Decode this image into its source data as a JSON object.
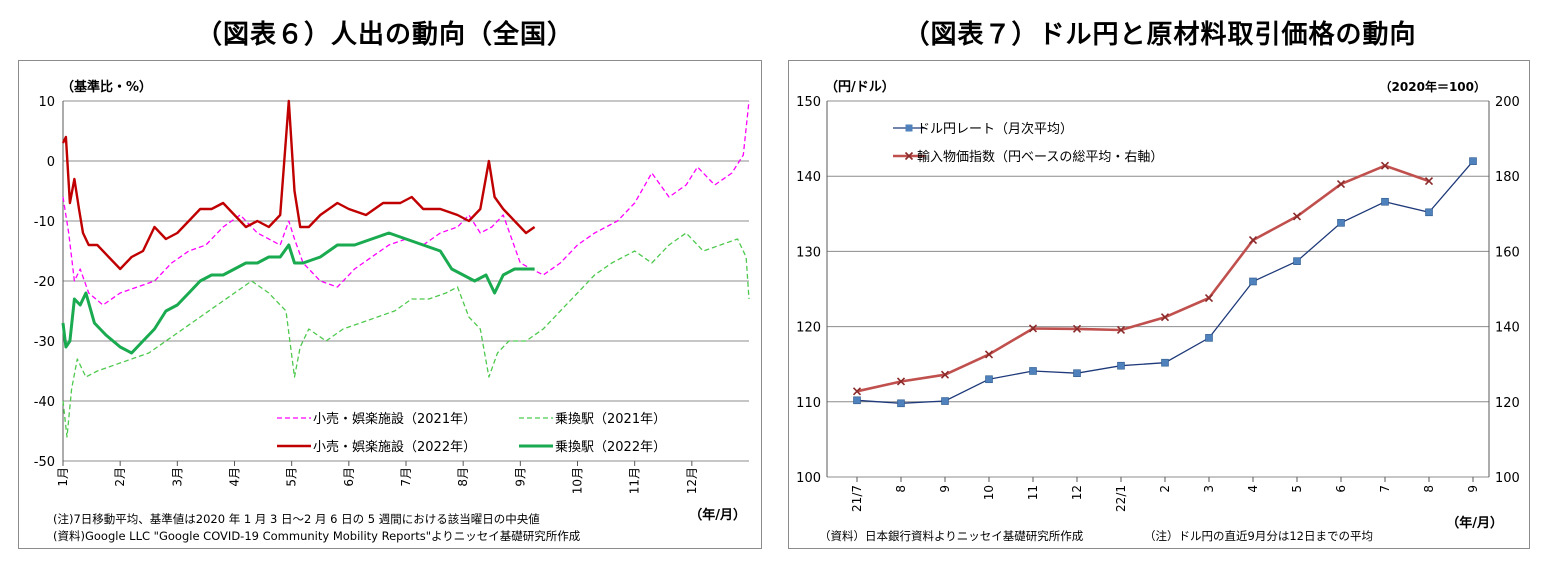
{
  "titles": {
    "left": "（図表６）人出の動向（全国）",
    "right": "（図表７）ドル円と原材料取引価格の動向"
  },
  "chart_data": [
    {
      "type": "line",
      "title": "（図表６）人出の動向（全国）",
      "ylabel": "（基準比・%）",
      "xlabel": "（年/月）",
      "ylim": [
        -50,
        10
      ],
      "yticks": [
        10,
        0,
        -10,
        -20,
        -30,
        -40,
        -50
      ],
      "x_months": [
        "1月",
        "2月",
        "3月",
        "4月",
        "5月",
        "6月",
        "7月",
        "8月",
        "9月",
        "10月",
        "11月",
        "12月"
      ],
      "grid": true,
      "legend_placement": "bottom-right",
      "series": [
        {
          "name": "小売・娯楽施設（2021年）",
          "color": "#ff00ff",
          "style": "dashed",
          "width": 1.3,
          "x": [
            1,
            1.1,
            1.2,
            1.3,
            1.45,
            1.7,
            2.0,
            2.3,
            2.6,
            2.9,
            3.2,
            3.5,
            3.8,
            4.1,
            4.4,
            4.8,
            4.95,
            5.05,
            5.2,
            5.5,
            5.8,
            6.1,
            6.4,
            6.7,
            7.0,
            7.3,
            7.6,
            7.9,
            8.1,
            8.3,
            8.5,
            8.7,
            9.0,
            9.4,
            9.7,
            10.0,
            10.3,
            10.7,
            11.0,
            11.3,
            11.6,
            11.9,
            12.1,
            12.4,
            12.7,
            12.9,
            13.0
          ],
          "y": [
            -6,
            -12,
            -20,
            -18,
            -22,
            -24,
            -22,
            -21,
            -20,
            -17,
            -15,
            -14,
            -11,
            -9,
            -12,
            -14,
            -10,
            -13,
            -17,
            -20,
            -21,
            -18,
            -16,
            -14,
            -13,
            -14,
            -12,
            -11,
            -9,
            -12,
            -11,
            -9,
            -17,
            -19,
            -17,
            -14,
            -12,
            -10,
            -7,
            -2,
            -6,
            -4,
            -1,
            -4,
            -2,
            1,
            10
          ]
        },
        {
          "name": "乗換駅（2021年）",
          "color": "#4ec94e",
          "style": "dashed",
          "width": 1.3,
          "x": [
            1,
            1.07,
            1.15,
            1.25,
            1.4,
            1.6,
            1.9,
            2.2,
            2.5,
            2.8,
            3.1,
            3.4,
            3.7,
            4.0,
            4.3,
            4.6,
            4.9,
            5.05,
            5.15,
            5.3,
            5.6,
            5.9,
            6.2,
            6.5,
            6.8,
            7.1,
            7.4,
            7.7,
            7.9,
            8.1,
            8.3,
            8.45,
            8.6,
            8.8,
            9.1,
            9.4,
            9.7,
            10.0,
            10.3,
            10.6,
            11.0,
            11.3,
            11.6,
            11.9,
            12.2,
            12.5,
            12.8,
            12.95,
            13.0
          ],
          "y": [
            -40,
            -46,
            -38,
            -33,
            -36,
            -35,
            -34,
            -33,
            -32,
            -30,
            -28,
            -26,
            -24,
            -22,
            -20,
            -22,
            -25,
            -36,
            -31,
            -28,
            -30,
            -28,
            -27,
            -26,
            -25,
            -23,
            -23,
            -22,
            -21,
            -26,
            -28,
            -36,
            -32,
            -30,
            -30,
            -28,
            -25,
            -22,
            -19,
            -17,
            -15,
            -17,
            -14,
            -12,
            -15,
            -14,
            -13,
            -16,
            -23
          ]
        },
        {
          "name": "小売・娯楽施設（2022年）",
          "color": "#c00000",
          "style": "solid",
          "width": 2.4,
          "x": [
            1,
            1.05,
            1.12,
            1.2,
            1.28,
            1.35,
            1.45,
            1.6,
            1.8,
            2.0,
            2.2,
            2.4,
            2.6,
            2.8,
            3.0,
            3.2,
            3.4,
            3.6,
            3.8,
            4.0,
            4.2,
            4.4,
            4.6,
            4.8,
            4.95,
            5.05,
            5.15,
            5.3,
            5.5,
            5.8,
            6.0,
            6.3,
            6.6,
            6.9,
            7.1,
            7.3,
            7.6,
            7.9,
            8.1,
            8.3,
            8.45,
            8.55,
            8.7,
            8.9,
            9.1,
            9.25
          ],
          "y": [
            3,
            4,
            -7,
            -3,
            -8,
            -12,
            -14,
            -14,
            -16,
            -18,
            -16,
            -15,
            -11,
            -13,
            -12,
            -10,
            -8,
            -8,
            -7,
            -9,
            -11,
            -10,
            -11,
            -9,
            10,
            -5,
            -11,
            -11,
            -9,
            -7,
            -8,
            -9,
            -7,
            -7,
            -6,
            -8,
            -8,
            -9,
            -10,
            -8,
            0,
            -6,
            -8,
            -10,
            -12,
            -11
          ]
        },
        {
          "name": "乗換駅（2022年）",
          "color": "#1aaa50",
          "style": "solid",
          "width": 3.0,
          "x": [
            1,
            1.05,
            1.12,
            1.2,
            1.3,
            1.4,
            1.55,
            1.75,
            2.0,
            2.2,
            2.4,
            2.6,
            2.8,
            3.0,
            3.2,
            3.4,
            3.6,
            3.8,
            4.0,
            4.2,
            4.4,
            4.6,
            4.8,
            4.95,
            5.05,
            5.2,
            5.5,
            5.8,
            6.1,
            6.4,
            6.7,
            7.0,
            7.3,
            7.6,
            7.8,
            8.0,
            8.2,
            8.4,
            8.55,
            8.7,
            8.9,
            9.1,
            9.25
          ],
          "y": [
            -27,
            -31,
            -30,
            -23,
            -24,
            -22,
            -27,
            -29,
            -31,
            -32,
            -30,
            -28,
            -25,
            -24,
            -22,
            -20,
            -19,
            -19,
            -18,
            -17,
            -17,
            -16,
            -16,
            -14,
            -17,
            -17,
            -16,
            -14,
            -14,
            -13,
            -12,
            -13,
            -14,
            -15,
            -18,
            -19,
            -20,
            -19,
            -22,
            -19,
            -18,
            -18,
            -18
          ]
        }
      ],
      "notes": [
        "(注)7日移動平均、基準値は2020 年 1 月 3 日～2 月 6 日の 5 週間における該当曜日の中央値",
        "(資料)Google LLC \"Google COVID-19 Community Mobility Reports\"よりニッセイ基礎研究所作成"
      ]
    },
    {
      "type": "line",
      "title": "（図表７）ドル円と原材料取引価格の動向",
      "ylabel": "（円/ドル）",
      "y2label": "（2020年＝100）",
      "xlabel": "（年/月）",
      "categories": [
        "21/7",
        "8",
        "9",
        "10",
        "11",
        "12",
        "22/1",
        "2",
        "3",
        "4",
        "5",
        "6",
        "7",
        "8",
        "9"
      ],
      "ylim": [
        100,
        150
      ],
      "yticks": [
        150,
        140,
        130,
        120,
        110,
        100
      ],
      "y2lim": [
        100,
        200
      ],
      "y2ticks": [
        200,
        180,
        160,
        140,
        120,
        100
      ],
      "grid": true,
      "legend_placement": "top-left",
      "series": [
        {
          "name": "ドル円レート（月次平均）",
          "axis": "left",
          "color": "#1f3a7a",
          "marker_color": "#4f81bd",
          "marker": "square",
          "values": [
            110.2,
            109.8,
            110.1,
            113.0,
            114.1,
            113.8,
            114.8,
            115.2,
            118.5,
            126.0,
            128.7,
            133.8,
            136.6,
            135.2,
            142.0
          ]
        },
        {
          "name": "輸入物価指数（円ベースの総平均・右軸）",
          "axis": "right",
          "color": "#c0504d",
          "marker_color": "#c0504d",
          "marker": "x",
          "values": [
            122.8,
            125.4,
            127.2,
            132.6,
            139.5,
            139.4,
            139.1,
            142.5,
            147.6,
            163.0,
            169.3,
            177.9,
            182.8,
            178.7,
            null
          ]
        }
      ],
      "notes": [
        "（資料）日本銀行資料よりニッセイ基礎研究所作成",
        "（注）ドル円の直近9月分は12日までの平均"
      ]
    }
  ]
}
